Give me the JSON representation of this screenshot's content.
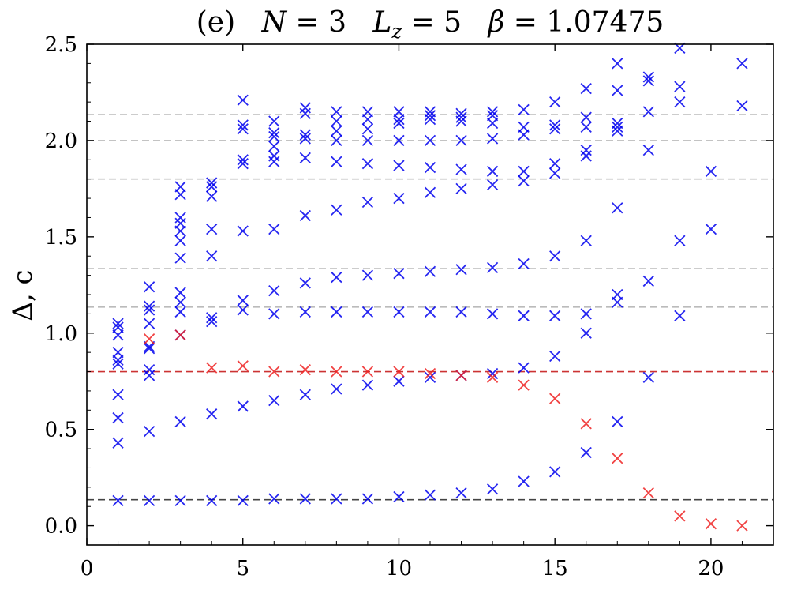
{
  "chart_data": {
    "type": "scatter",
    "title": "(e)  N = 3  L_z = 5  β = 1.07475",
    "title_parts": {
      "label": "(e)",
      "n_sym": "N",
      "n_val": " = 3",
      "l_sym": "L",
      "l_sub": "z",
      "l_val": " = 5",
      "b_sym": "β",
      "b_val": " = 1.07475"
    },
    "xlabel": "",
    "ylabel": "Δ, c",
    "xlim": [
      0,
      22
    ],
    "ylim": [
      -0.1,
      2.5
    ],
    "xticks": [
      0,
      5,
      10,
      15,
      20
    ],
    "xtick_labels": [
      "0",
      "5",
      "10",
      "15",
      "20"
    ],
    "yticks": [
      0.0,
      0.5,
      1.0,
      1.5,
      2.0,
      2.5
    ],
    "ytick_labels": [
      "0.0",
      "0.5",
      "1.0",
      "1.5",
      "2.0",
      "2.5"
    ],
    "grid": false,
    "marker": "x",
    "reference_lines": [
      {
        "y": 0.135,
        "color": "#444444",
        "style": "dashed"
      },
      {
        "y": 0.8,
        "color": "#cc3333",
        "style": "dashed"
      },
      {
        "y": 1.135,
        "color": "#bbbbbb",
        "style": "dashed"
      },
      {
        "y": 1.335,
        "color": "#bbbbbb",
        "style": "dashed"
      },
      {
        "y": 1.8,
        "color": "#bbbbbb",
        "style": "dashed"
      },
      {
        "y": 2.0,
        "color": "#bbbbbb",
        "style": "dashed"
      },
      {
        "y": 2.135,
        "color": "#bbbbbb",
        "style": "dashed"
      }
    ],
    "series": [
      {
        "name": "blue",
        "color": "#0000ee",
        "points": [
          [
            1,
            0.13
          ],
          [
            1,
            0.43
          ],
          [
            1,
            0.56
          ],
          [
            1,
            0.68
          ],
          [
            1,
            0.84
          ],
          [
            1,
            0.86
          ],
          [
            1,
            0.9
          ],
          [
            1,
            0.99
          ],
          [
            1,
            1.03
          ],
          [
            1,
            1.05
          ],
          [
            2,
            0.13
          ],
          [
            2,
            0.49
          ],
          [
            2,
            0.78
          ],
          [
            2,
            0.81
          ],
          [
            2,
            0.92
          ],
          [
            2,
            0.93
          ],
          [
            2,
            1.05
          ],
          [
            2,
            1.12
          ],
          [
            2,
            1.14
          ],
          [
            2,
            1.24
          ],
          [
            3,
            0.13
          ],
          [
            3,
            0.54
          ],
          [
            3,
            0.99
          ],
          [
            3,
            1.11
          ],
          [
            3,
            1.16
          ],
          [
            3,
            1.21
          ],
          [
            3,
            1.39
          ],
          [
            3,
            1.48
          ],
          [
            3,
            1.53
          ],
          [
            3,
            1.57
          ],
          [
            3,
            1.6
          ],
          [
            3,
            1.72
          ],
          [
            3,
            1.76
          ],
          [
            4,
            0.13
          ],
          [
            4,
            0.58
          ],
          [
            4,
            1.06
          ],
          [
            4,
            1.08
          ],
          [
            4,
            1.4
          ],
          [
            4,
            1.54
          ],
          [
            4,
            1.71
          ],
          [
            4,
            1.76
          ],
          [
            4,
            1.78
          ],
          [
            5,
            0.13
          ],
          [
            5,
            0.62
          ],
          [
            5,
            1.12
          ],
          [
            5,
            1.17
          ],
          [
            5,
            1.53
          ],
          [
            5,
            1.88
          ],
          [
            5,
            1.9
          ],
          [
            5,
            2.06
          ],
          [
            5,
            2.08
          ],
          [
            5,
            2.21
          ],
          [
            6,
            0.14
          ],
          [
            6,
            0.65
          ],
          [
            6,
            1.1
          ],
          [
            6,
            1.22
          ],
          [
            6,
            1.54
          ],
          [
            6,
            1.89
          ],
          [
            6,
            1.92
          ],
          [
            6,
            1.97
          ],
          [
            6,
            2.02
          ],
          [
            6,
            2.04
          ],
          [
            6,
            2.1
          ],
          [
            7,
            0.14
          ],
          [
            7,
            0.68
          ],
          [
            7,
            1.11
          ],
          [
            7,
            1.26
          ],
          [
            7,
            1.61
          ],
          [
            7,
            1.91
          ],
          [
            7,
            2.01
          ],
          [
            7,
            2.03
          ],
          [
            7,
            2.14
          ],
          [
            7,
            2.17
          ],
          [
            8,
            0.14
          ],
          [
            8,
            0.71
          ],
          [
            8,
            1.11
          ],
          [
            8,
            1.29
          ],
          [
            8,
            1.64
          ],
          [
            8,
            1.89
          ],
          [
            8,
            2.0
          ],
          [
            8,
            2.05
          ],
          [
            8,
            2.1
          ],
          [
            8,
            2.15
          ],
          [
            9,
            0.14
          ],
          [
            9,
            0.73
          ],
          [
            9,
            1.11
          ],
          [
            9,
            1.3
          ],
          [
            9,
            1.68
          ],
          [
            9,
            1.88
          ],
          [
            9,
            2.0
          ],
          [
            9,
            2.06
          ],
          [
            9,
            2.11
          ],
          [
            9,
            2.15
          ],
          [
            10,
            0.15
          ],
          [
            10,
            0.75
          ],
          [
            10,
            1.11
          ],
          [
            10,
            1.31
          ],
          [
            10,
            1.7
          ],
          [
            10,
            1.87
          ],
          [
            10,
            2.0
          ],
          [
            10,
            2.09
          ],
          [
            10,
            2.11
          ],
          [
            10,
            2.15
          ],
          [
            11,
            0.16
          ],
          [
            11,
            0.77
          ],
          [
            11,
            1.11
          ],
          [
            11,
            1.32
          ],
          [
            11,
            1.73
          ],
          [
            11,
            1.86
          ],
          [
            11,
            2.0
          ],
          [
            11,
            2.11
          ],
          [
            11,
            2.13
          ],
          [
            11,
            2.15
          ],
          [
            12,
            0.17
          ],
          [
            12,
            0.78
          ],
          [
            12,
            1.11
          ],
          [
            12,
            1.33
          ],
          [
            12,
            1.75
          ],
          [
            12,
            1.85
          ],
          [
            12,
            2.0
          ],
          [
            12,
            2.1
          ],
          [
            12,
            2.12
          ],
          [
            12,
            2.14
          ],
          [
            13,
            0.19
          ],
          [
            13,
            0.79
          ],
          [
            13,
            1.1
          ],
          [
            13,
            1.34
          ],
          [
            13,
            1.77
          ],
          [
            13,
            1.84
          ],
          [
            13,
            2.01
          ],
          [
            13,
            2.09
          ],
          [
            13,
            2.13
          ],
          [
            13,
            2.15
          ],
          [
            14,
            0.23
          ],
          [
            14,
            0.82
          ],
          [
            14,
            1.09
          ],
          [
            14,
            1.36
          ],
          [
            14,
            1.79
          ],
          [
            14,
            1.84
          ],
          [
            14,
            2.03
          ],
          [
            14,
            2.07
          ],
          [
            14,
            2.16
          ],
          [
            15,
            0.28
          ],
          [
            15,
            0.88
          ],
          [
            15,
            1.09
          ],
          [
            15,
            1.4
          ],
          [
            15,
            1.83
          ],
          [
            15,
            1.88
          ],
          [
            15,
            2.06
          ],
          [
            15,
            2.08
          ],
          [
            15,
            2.2
          ],
          [
            16,
            0.38
          ],
          [
            16,
            1.0
          ],
          [
            16,
            1.1
          ],
          [
            16,
            1.48
          ],
          [
            16,
            1.92
          ],
          [
            16,
            1.95
          ],
          [
            16,
            2.07
          ],
          [
            16,
            2.12
          ],
          [
            16,
            2.27
          ],
          [
            17,
            0.54
          ],
          [
            17,
            1.16
          ],
          [
            17,
            1.2
          ],
          [
            17,
            1.65
          ],
          [
            17,
            2.05
          ],
          [
            17,
            2.07
          ],
          [
            17,
            2.09
          ],
          [
            17,
            2.26
          ],
          [
            17,
            2.4
          ],
          [
            18,
            0.77
          ],
          [
            18,
            1.27
          ],
          [
            18,
            1.95
          ],
          [
            18,
            2.15
          ],
          [
            18,
            2.31
          ],
          [
            18,
            2.33
          ],
          [
            19,
            1.09
          ],
          [
            19,
            1.48
          ],
          [
            19,
            2.2
          ],
          [
            19,
            2.28
          ],
          [
            19,
            2.48
          ],
          [
            20,
            1.54
          ],
          [
            20,
            1.84
          ],
          [
            21,
            2.18
          ],
          [
            21,
            2.4
          ]
        ]
      },
      {
        "name": "red",
        "color": "#ee2222",
        "points": [
          [
            2,
            0.97
          ],
          [
            3,
            0.99
          ],
          [
            4,
            0.82
          ],
          [
            5,
            0.83
          ],
          [
            6,
            0.8
          ],
          [
            7,
            0.81
          ],
          [
            8,
            0.8
          ],
          [
            9,
            0.8
          ],
          [
            10,
            0.8
          ],
          [
            11,
            0.79
          ],
          [
            12,
            0.78
          ],
          [
            13,
            0.77
          ],
          [
            14,
            0.73
          ],
          [
            15,
            0.66
          ],
          [
            16,
            0.53
          ],
          [
            17,
            0.35
          ],
          [
            18,
            0.17
          ],
          [
            19,
            0.05
          ],
          [
            20,
            0.01
          ],
          [
            21,
            0.0
          ]
        ]
      }
    ]
  }
}
